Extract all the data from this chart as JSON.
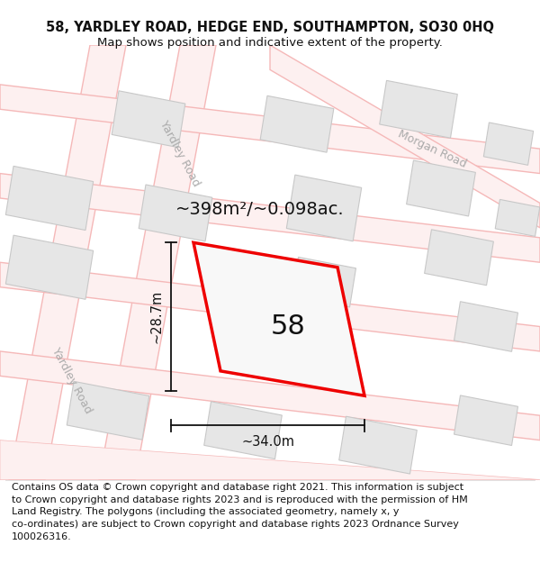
{
  "title_line1": "58, YARDLEY ROAD, HEDGE END, SOUTHAMPTON, SO30 0HQ",
  "title_line2": "Map shows position and indicative extent of the property.",
  "footer_text": "Contains OS data © Crown copyright and database right 2021. This information is subject to Crown copyright and database rights 2023 and is reproduced with the permission of HM Land Registry. The polygons (including the associated geometry, namely x, y co-ordinates) are subject to Crown copyright and database rights 2023 Ordnance Survey 100026316.",
  "area_label": "~398m²/~0.098ac.",
  "property_number": "58",
  "dim_width": "~34.0m",
  "dim_height": "~28.7m",
  "road_label_yardley_left": "Yardley Road",
  "road_label_yardley_center": "Yardley Road",
  "road_label_morgan": "Morgan Road",
  "bg_color": "#ffffff",
  "map_bg": "#ffffff",
  "block_fill": "#e6e6e6",
  "block_edge": "#c8c8c8",
  "road_edge_color": "#f5b8b8",
  "road_fill_color": "#fdf0f0",
  "property_stroke": "#ee0000",
  "property_fill": "#f8f8f8",
  "road_label_color": "#aaaaaa",
  "dim_color": "#111111",
  "text_color": "#111111",
  "title_fontsize": 10.5,
  "subtitle_fontsize": 9.5,
  "area_fontsize": 14,
  "number_fontsize": 22,
  "dim_fontsize": 10.5,
  "road_fontsize": 9,
  "footer_fontsize": 8.0
}
